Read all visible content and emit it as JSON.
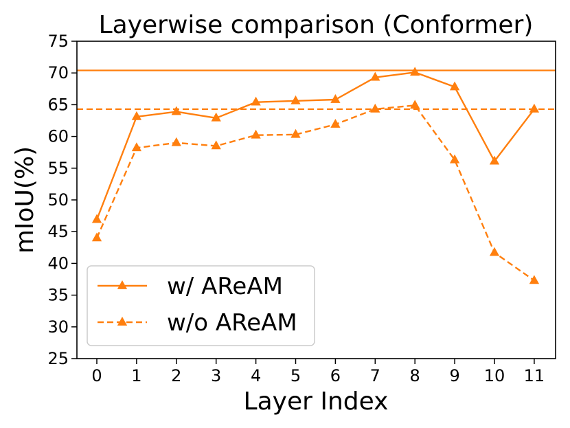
{
  "chart_data": {
    "type": "line",
    "title": "Layerwise comparison (Conformer)",
    "xlabel": "Layer Index",
    "ylabel": "mIoU(%)",
    "x": [
      0,
      1,
      2,
      3,
      4,
      5,
      6,
      7,
      8,
      9,
      10,
      11
    ],
    "ylim": [
      25,
      75
    ],
    "yticks": [
      25,
      30,
      35,
      40,
      45,
      50,
      55,
      60,
      65,
      70,
      75
    ],
    "grid": false,
    "legend_position": "lower-left",
    "color": "#ff7f0e",
    "series": [
      {
        "name": "w/ AReAM",
        "style": "solid",
        "marker": "triangle",
        "values": [
          46.9,
          63.1,
          63.9,
          62.9,
          65.4,
          65.6,
          65.8,
          69.3,
          70.1,
          67.8,
          56.1,
          64.3
        ]
      },
      {
        "name": "w/o AReAM",
        "style": "dashed",
        "marker": "triangle",
        "values": [
          44.0,
          58.2,
          59.0,
          58.5,
          60.2,
          60.3,
          61.9,
          64.3,
          64.9,
          56.3,
          41.7,
          37.3
        ]
      }
    ],
    "reference_lines": [
      {
        "y": 70.4,
        "style": "solid"
      },
      {
        "y": 64.3,
        "style": "dashed"
      }
    ]
  }
}
